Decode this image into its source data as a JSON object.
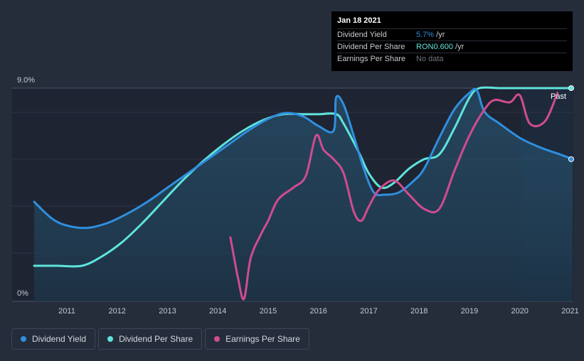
{
  "chart_data": {
    "type": "line",
    "x_ticks": [
      "2011",
      "2012",
      "2013",
      "2014",
      "2015",
      "2016",
      "2017",
      "2018",
      "2019",
      "2020",
      "2021"
    ],
    "y_ticks": [
      "9.0%",
      "0%"
    ],
    "ylim": [
      0,
      9.0
    ],
    "xlim": [
      2010.35,
      2021.05
    ],
    "past_label": "Past",
    "series": [
      {
        "name": "Dividend Yield",
        "color": "#2f8fdf",
        "points": [
          [
            2010.35,
            4.2
          ],
          [
            2010.7,
            3.5
          ],
          [
            2011.0,
            3.2
          ],
          [
            2011.4,
            3.1
          ],
          [
            2011.8,
            3.3
          ],
          [
            2012.2,
            3.7
          ],
          [
            2012.6,
            4.2
          ],
          [
            2013.0,
            4.8
          ],
          [
            2013.4,
            5.4
          ],
          [
            2013.8,
            6.0
          ],
          [
            2014.2,
            6.6
          ],
          [
            2014.6,
            7.2
          ],
          [
            2015.0,
            7.7
          ],
          [
            2015.35,
            7.95
          ],
          [
            2015.7,
            7.8
          ],
          [
            2016.0,
            7.4
          ],
          [
            2016.3,
            7.2
          ],
          [
            2016.35,
            8.6
          ],
          [
            2016.5,
            8.3
          ],
          [
            2016.7,
            7.0
          ],
          [
            2016.9,
            5.6
          ],
          [
            2017.1,
            4.6
          ],
          [
            2017.3,
            4.5
          ],
          [
            2017.6,
            4.6
          ],
          [
            2017.9,
            5.1
          ],
          [
            2018.1,
            5.6
          ],
          [
            2018.4,
            6.9
          ],
          [
            2018.7,
            8.1
          ],
          [
            2019.0,
            8.8
          ],
          [
            2019.15,
            8.9
          ],
          [
            2019.3,
            8.0
          ],
          [
            2019.6,
            7.5
          ],
          [
            2020.0,
            6.9
          ],
          [
            2020.4,
            6.5
          ],
          [
            2020.8,
            6.2
          ],
          [
            2021.05,
            6.0
          ]
        ]
      },
      {
        "name": "Dividend Per Share",
        "color": "#5fe3dd",
        "points": [
          [
            2010.35,
            1.5
          ],
          [
            2010.8,
            1.5
          ],
          [
            2011.3,
            1.5
          ],
          [
            2011.7,
            1.9
          ],
          [
            2012.1,
            2.5
          ],
          [
            2012.5,
            3.3
          ],
          [
            2012.9,
            4.2
          ],
          [
            2013.3,
            5.1
          ],
          [
            2013.7,
            5.9
          ],
          [
            2014.1,
            6.6
          ],
          [
            2014.5,
            7.2
          ],
          [
            2014.9,
            7.65
          ],
          [
            2015.3,
            7.9
          ],
          [
            2015.7,
            7.9
          ],
          [
            2016.0,
            7.9
          ],
          [
            2016.35,
            7.9
          ],
          [
            2016.5,
            7.5
          ],
          [
            2016.8,
            6.3
          ],
          [
            2017.0,
            5.4
          ],
          [
            2017.25,
            4.8
          ],
          [
            2017.5,
            5.0
          ],
          [
            2017.8,
            5.6
          ],
          [
            2018.1,
            6.0
          ],
          [
            2018.4,
            6.2
          ],
          [
            2018.7,
            7.3
          ],
          [
            2019.0,
            8.6
          ],
          [
            2019.2,
            9.0
          ],
          [
            2019.6,
            9.0
          ],
          [
            2020.0,
            9.0
          ],
          [
            2020.5,
            9.0
          ],
          [
            2021.05,
            9.0
          ]
        ]
      },
      {
        "name": "Earnings Per Share",
        "color": "#d04c8f",
        "points": [
          [
            2014.25,
            2.7
          ],
          [
            2014.4,
            1.0
          ],
          [
            2014.52,
            0.1
          ],
          [
            2014.65,
            1.8
          ],
          [
            2014.85,
            2.8
          ],
          [
            2015.0,
            3.4
          ],
          [
            2015.2,
            4.3
          ],
          [
            2015.5,
            4.8
          ],
          [
            2015.75,
            5.3
          ],
          [
            2015.95,
            7.0
          ],
          [
            2016.1,
            6.4
          ],
          [
            2016.3,
            6.0
          ],
          [
            2016.5,
            5.4
          ],
          [
            2016.7,
            3.8
          ],
          [
            2016.85,
            3.4
          ],
          [
            2017.0,
            4.0
          ],
          [
            2017.2,
            4.7
          ],
          [
            2017.5,
            5.1
          ],
          [
            2017.8,
            4.5
          ],
          [
            2018.1,
            3.9
          ],
          [
            2018.4,
            3.9
          ],
          [
            2018.7,
            5.5
          ],
          [
            2019.0,
            7.0
          ],
          [
            2019.3,
            8.1
          ],
          [
            2019.5,
            8.5
          ],
          [
            2019.8,
            8.4
          ],
          [
            2020.0,
            8.7
          ],
          [
            2020.2,
            7.5
          ],
          [
            2020.5,
            7.6
          ],
          [
            2020.75,
            8.8
          ]
        ]
      }
    ],
    "tooltip": {
      "date": "Jan 18 2021",
      "rows": [
        {
          "label": "Dividend Yield",
          "value": "5.7%",
          "suffix": " /yr",
          "color": "#2f8fdf"
        },
        {
          "label": "Dividend Per Share",
          "value": "RON0.600",
          "suffix": " /yr",
          "color": "#5fe3dd"
        },
        {
          "label": "Earnings Per Share",
          "value": "No data",
          "suffix": "",
          "color": "#6f7480"
        }
      ]
    },
    "legend": [
      {
        "label": "Dividend Yield",
        "color": "#2f8fdf"
      },
      {
        "label": "Dividend Per Share",
        "color": "#5fe3dd"
      },
      {
        "label": "Earnings Per Share",
        "color": "#d04c8f"
      }
    ]
  }
}
